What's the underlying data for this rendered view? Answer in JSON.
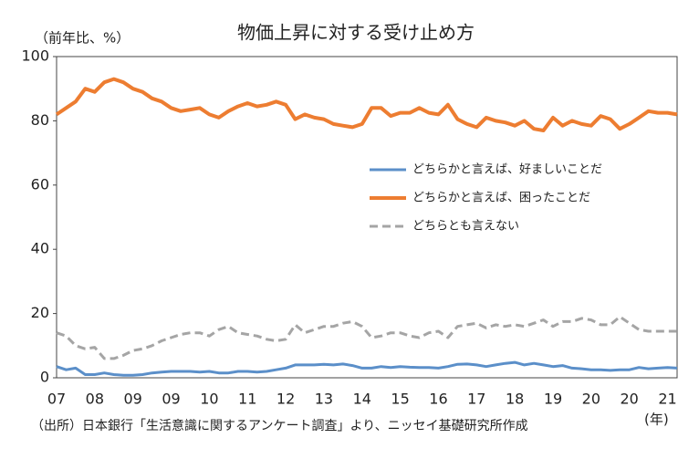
{
  "chart_data": {
    "type": "line",
    "title": "物価上昇に対する受け止め方",
    "y_label": "（前年比、%）",
    "x_unit": "(年)",
    "source": "（出所）日本銀行「生活意識に関するアンケート調査」より、ニッセイ基礎研究所作成",
    "ylim": [
      0,
      100
    ],
    "yticks": [
      0,
      20,
      40,
      60,
      80,
      100
    ],
    "grid": false,
    "legend": "center-right",
    "categories": [
      "07",
      null,
      null,
      null,
      "08",
      null,
      null,
      null,
      "09",
      null,
      null,
      null,
      "09",
      null,
      null,
      null,
      "10",
      null,
      null,
      null,
      "11",
      null,
      null,
      null,
      "12",
      null,
      null,
      null,
      "13",
      null,
      null,
      null,
      "14",
      null,
      null,
      null,
      "15",
      null,
      null,
      null,
      "16",
      null,
      null,
      null,
      "17",
      null,
      null,
      null,
      "18",
      null,
      null,
      null,
      "19",
      null,
      null,
      null,
      "20",
      null,
      null,
      null,
      "20",
      null,
      null,
      null,
      "21",
      null
    ],
    "series": [
      {
        "name": "どちらかと言えば、好ましいことだ",
        "color": "#5b8fc9",
        "dash": false,
        "values": [
          3.5,
          2.5,
          3,
          1,
          1,
          1.5,
          1,
          0.8,
          0.8,
          1,
          1.5,
          1.8,
          2,
          2,
          2,
          1.8,
          2,
          1.5,
          1.5,
          2,
          2,
          1.8,
          2,
          2.5,
          3,
          4,
          4,
          4,
          4.2,
          4,
          4.3,
          3.8,
          3,
          3,
          3.5,
          3.2,
          3.5,
          3.3,
          3.2,
          3.2,
          3,
          3.5,
          4.2,
          4.3,
          4,
          3.5,
          4,
          4.5,
          4.8,
          4,
          4.5,
          4,
          3.5,
          3.8,
          3,
          2.8,
          2.5,
          2.5,
          2.3,
          2.5,
          2.5,
          3.2,
          2.8,
          3,
          3.2,
          3
        ]
      },
      {
        "name": "どちらかと言えば、困ったことだ",
        "color": "#ed7d31",
        "dash": false,
        "values": [
          82,
          84,
          86,
          90,
          89,
          92,
          93,
          92,
          90,
          89,
          87,
          86,
          84,
          83,
          83.5,
          84,
          82,
          81,
          83,
          84.5,
          85.5,
          84.5,
          85,
          86,
          85,
          80.5,
          82,
          81,
          80.5,
          79,
          78.5,
          78,
          79,
          84,
          84,
          81.5,
          82.5,
          82.5,
          84,
          82.5,
          82,
          85,
          80.5,
          79,
          78,
          81,
          80,
          79.5,
          78.5,
          80,
          77.5,
          77,
          81,
          78.5,
          80,
          79,
          78.5,
          81.5,
          80.5,
          77.5,
          79,
          81,
          83,
          82.5,
          82.5,
          82
        ]
      },
      {
        "name": "どちらとも言えない",
        "color": "#a5a5a5",
        "dash": true,
        "values": [
          14,
          13,
          10,
          9,
          9.5,
          6,
          6,
          7,
          8.5,
          9,
          10,
          11.5,
          12.5,
          13.5,
          14,
          14,
          13,
          15,
          16,
          14,
          13.5,
          13,
          12,
          11.5,
          12,
          16.5,
          14,
          15,
          16,
          16,
          17,
          17.5,
          16,
          12.5,
          13,
          14,
          14,
          13,
          12.5,
          14,
          14.5,
          12.5,
          16,
          16.5,
          17,
          15.5,
          16.5,
          16,
          16.5,
          16,
          17,
          18,
          16,
          17.5,
          17.5,
          18.5,
          18,
          16.5,
          16.5,
          19,
          17,
          15,
          14.5,
          14.5,
          14.5,
          14.5
        ]
      }
    ]
  }
}
